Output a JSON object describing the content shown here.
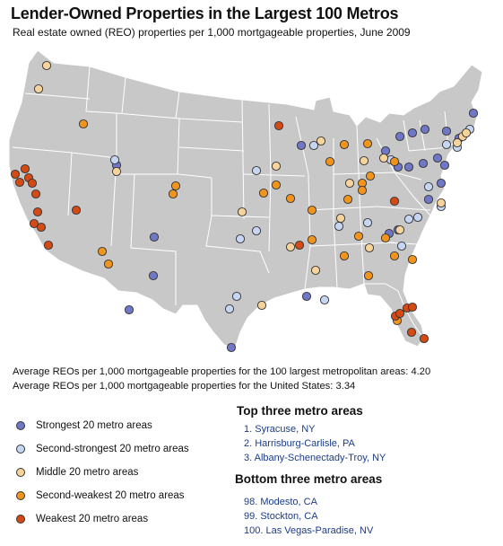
{
  "title": "Lender-Owned Properties in the Largest 100 Metros",
  "subtitle": "Real estate owned (REO) properties per 1,000 mortgageable properties, June 2009",
  "averages": {
    "metro": "Average REOs per 1,000 mortgageable properties for the 100 largest metropolitan areas: 4.20",
    "us": "Average REOs per 1,000 mortgageable properties for the United States: 3.34"
  },
  "colors": {
    "land": "#c8c8c8",
    "border": "#ffffff",
    "strongest": "#6f77c6",
    "second_strongest": "#c6d6f2",
    "middle": "#f6d39a",
    "second_weakest": "#f0941e",
    "weakest": "#d44a14"
  },
  "legend": [
    {
      "label": "Strongest 20 metro areas",
      "color": "#6f77c6"
    },
    {
      "label": "Second-strongest 20 metro areas",
      "color": "#c6d6f2"
    },
    {
      "label": "Middle 20 metro areas",
      "color": "#f6d39a"
    },
    {
      "label": "Second-weakest 20 metro areas",
      "color": "#f0941e"
    },
    {
      "label": "Weakest 20 metro areas",
      "color": "#d44a14"
    }
  ],
  "top_three": {
    "heading": "Top three metro areas",
    "items": [
      "1. Syracuse, NY",
      "2. Harrisburg-Carlisle, PA",
      "3. Albany-Schenectady-Troy, NY"
    ]
  },
  "bottom_three": {
    "heading": "Bottom three metro areas",
    "items": [
      "98. Modesto, CA",
      "99. Stockton, CA",
      "100. Las Vegas-Paradise, NV"
    ]
  }
}
